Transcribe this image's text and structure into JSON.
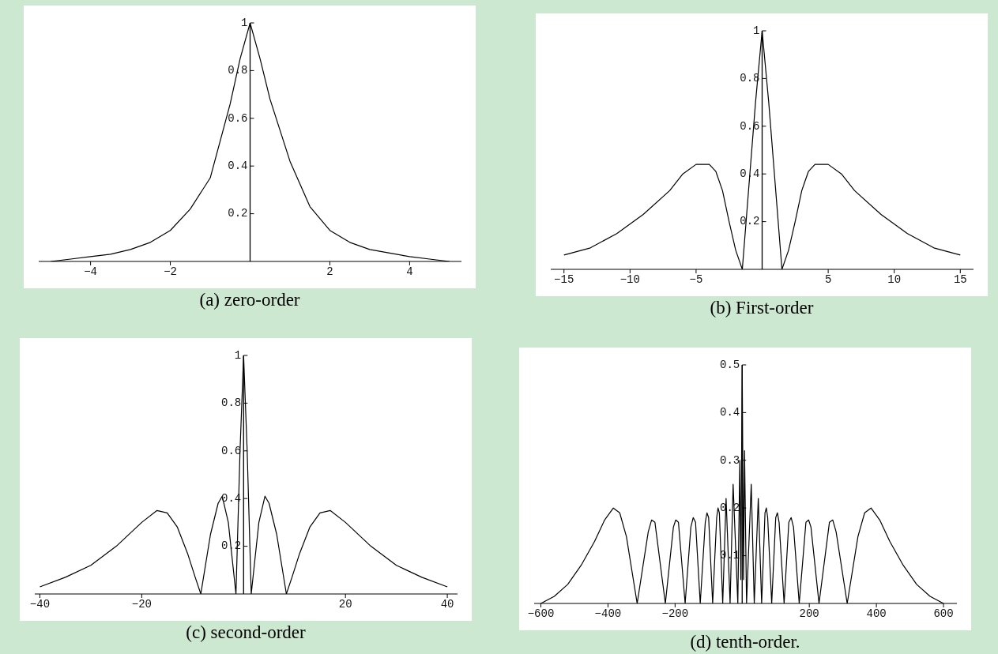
{
  "chart_data": [
    {
      "type": "line",
      "title": "(a) zero-order",
      "xlim": [
        -5.3,
        5.3
      ],
      "ylim": [
        0,
        1
      ],
      "xticks": [
        -4,
        -2,
        2,
        4
      ],
      "yticks": [
        0.2,
        0.4,
        0.6,
        0.8,
        1
      ],
      "marker": "none",
      "series": [
        {
          "color": "#000000",
          "x": [
            -5,
            -4.5,
            -4,
            -3.5,
            -3,
            -2.5,
            -2,
            -1.5,
            -1,
            -0.5,
            -0.25,
            0,
            0.25,
            0.5,
            1,
            1.5,
            2,
            2.5,
            3,
            3.5,
            4,
            4.5,
            5
          ],
          "values": [
            0,
            0.01,
            0.02,
            0.03,
            0.05,
            0.08,
            0.13,
            0.22,
            0.35,
            0.66,
            0.85,
            1,
            0.85,
            0.68,
            0.42,
            0.23,
            0.13,
            0.08,
            0.05,
            0.035,
            0.02,
            0.01,
            0
          ]
        }
      ]
    },
    {
      "type": "line",
      "title": "(b) First-order",
      "xlim": [
        -16,
        16
      ],
      "ylim": [
        0,
        1
      ],
      "xticks": [
        -15,
        -10,
        -5,
        5,
        10,
        15
      ],
      "yticks": [
        0.2,
        0.4,
        0.6,
        0.8,
        1
      ],
      "marker": "none",
      "series": [
        {
          "color": "#000000",
          "x": [
            -15,
            -13,
            -11,
            -9,
            -7,
            -6,
            -5,
            -4,
            -3.5,
            -3,
            -2.5,
            -2,
            -1.5,
            -1,
            -0.5,
            0,
            0.5,
            1,
            1.5,
            2,
            2.5,
            3,
            3.5,
            4,
            5,
            6,
            7,
            9,
            11,
            13,
            15
          ],
          "values": [
            0.06,
            0.09,
            0.15,
            0.23,
            0.33,
            0.4,
            0.44,
            0.44,
            0.41,
            0.33,
            0.2,
            0.08,
            0,
            0.35,
            0.7,
            1,
            0.7,
            0.35,
            0,
            0.08,
            0.2,
            0.33,
            0.41,
            0.44,
            0.44,
            0.4,
            0.33,
            0.23,
            0.15,
            0.09,
            0.06
          ]
        }
      ]
    },
    {
      "type": "line",
      "title": "(c) second-order",
      "xlim": [
        -41,
        42
      ],
      "ylim": [
        0,
        1
      ],
      "xticks": [
        -40,
        -20,
        20,
        40
      ],
      "yticks": [
        0.2,
        0.4,
        0.6,
        0.8,
        1
      ],
      "marker": "none",
      "series": [
        {
          "color": "#000000",
          "x": [
            -40,
            -35,
            -30,
            -25,
            -20,
            -17,
            -15,
            -13,
            -11,
            -9.5,
            -8.4,
            -6.5,
            -5,
            -4.2,
            -3,
            -2,
            -1.5,
            -0.7,
            0,
            0.7,
            1.5,
            2,
            3,
            4.2,
            5,
            6.5,
            8.4,
            9.5,
            11,
            13,
            15,
            17,
            20,
            25,
            30,
            35,
            40
          ],
          "values": [
            0.03,
            0.07,
            0.12,
            0.2,
            0.3,
            0.35,
            0.34,
            0.28,
            0.17,
            0.07,
            0,
            0.25,
            0.38,
            0.41,
            0.3,
            0.1,
            0,
            0.6,
            1,
            0.6,
            0,
            0.1,
            0.3,
            0.41,
            0.38,
            0.25,
            0,
            0.07,
            0.17,
            0.28,
            0.34,
            0.35,
            0.3,
            0.2,
            0.12,
            0.07,
            0.03
          ]
        }
      ]
    },
    {
      "type": "line",
      "title": "(d) tenth-order.",
      "xlim": [
        -620,
        640
      ],
      "ylim": [
        0,
        0.5
      ],
      "xticks": [
        -600,
        -400,
        -200,
        200,
        400,
        600
      ],
      "yticks": [
        0.1,
        0.2,
        0.3,
        0.4,
        0.5
      ],
      "marker": "none",
      "series": [
        {
          "color": "#000000",
          "x": [
            -600,
            -560,
            -520,
            -480,
            -440,
            -410,
            -384,
            -365,
            -345,
            -313,
            -280,
            -270,
            -260,
            -229,
            -205,
            -198,
            -190,
            -170,
            -153,
            -146,
            -139,
            -125,
            -110,
            -105,
            -100,
            -88,
            -76,
            -72,
            -68,
            -58,
            -48,
            -36,
            -27,
            -13,
            -7,
            -4,
            0,
            4,
            7,
            13,
            27,
            36,
            48,
            58,
            68,
            72,
            76,
            88,
            100,
            105,
            110,
            125,
            139,
            146,
            153,
            170,
            190,
            198,
            205,
            229,
            260,
            270,
            280,
            313,
            345,
            365,
            384,
            410,
            440,
            480,
            520,
            560,
            600
          ],
          "values": [
            0,
            0.015,
            0.04,
            0.08,
            0.13,
            0.175,
            0.2,
            0.19,
            0.14,
            0,
            0.15,
            0.175,
            0.17,
            0,
            0.16,
            0.175,
            0.17,
            0,
            0.16,
            0.18,
            0.17,
            0,
            0.17,
            0.19,
            0.18,
            0,
            0.18,
            0.2,
            0.19,
            0,
            0.22,
            0,
            0.25,
            0,
            0.3,
            0.05,
            0.5,
            0.05,
            0.32,
            0,
            0.25,
            0,
            0.22,
            0,
            0.19,
            0.2,
            0.18,
            0,
            0.18,
            0.19,
            0.17,
            0,
            0.17,
            0.18,
            0.16,
            0,
            0.17,
            0.175,
            0.16,
            0,
            0.17,
            0.175,
            0.15,
            0,
            0.14,
            0.19,
            0.2,
            0.175,
            0.13,
            0.08,
            0.04,
            0.015,
            0
          ]
        }
      ]
    }
  ]
}
